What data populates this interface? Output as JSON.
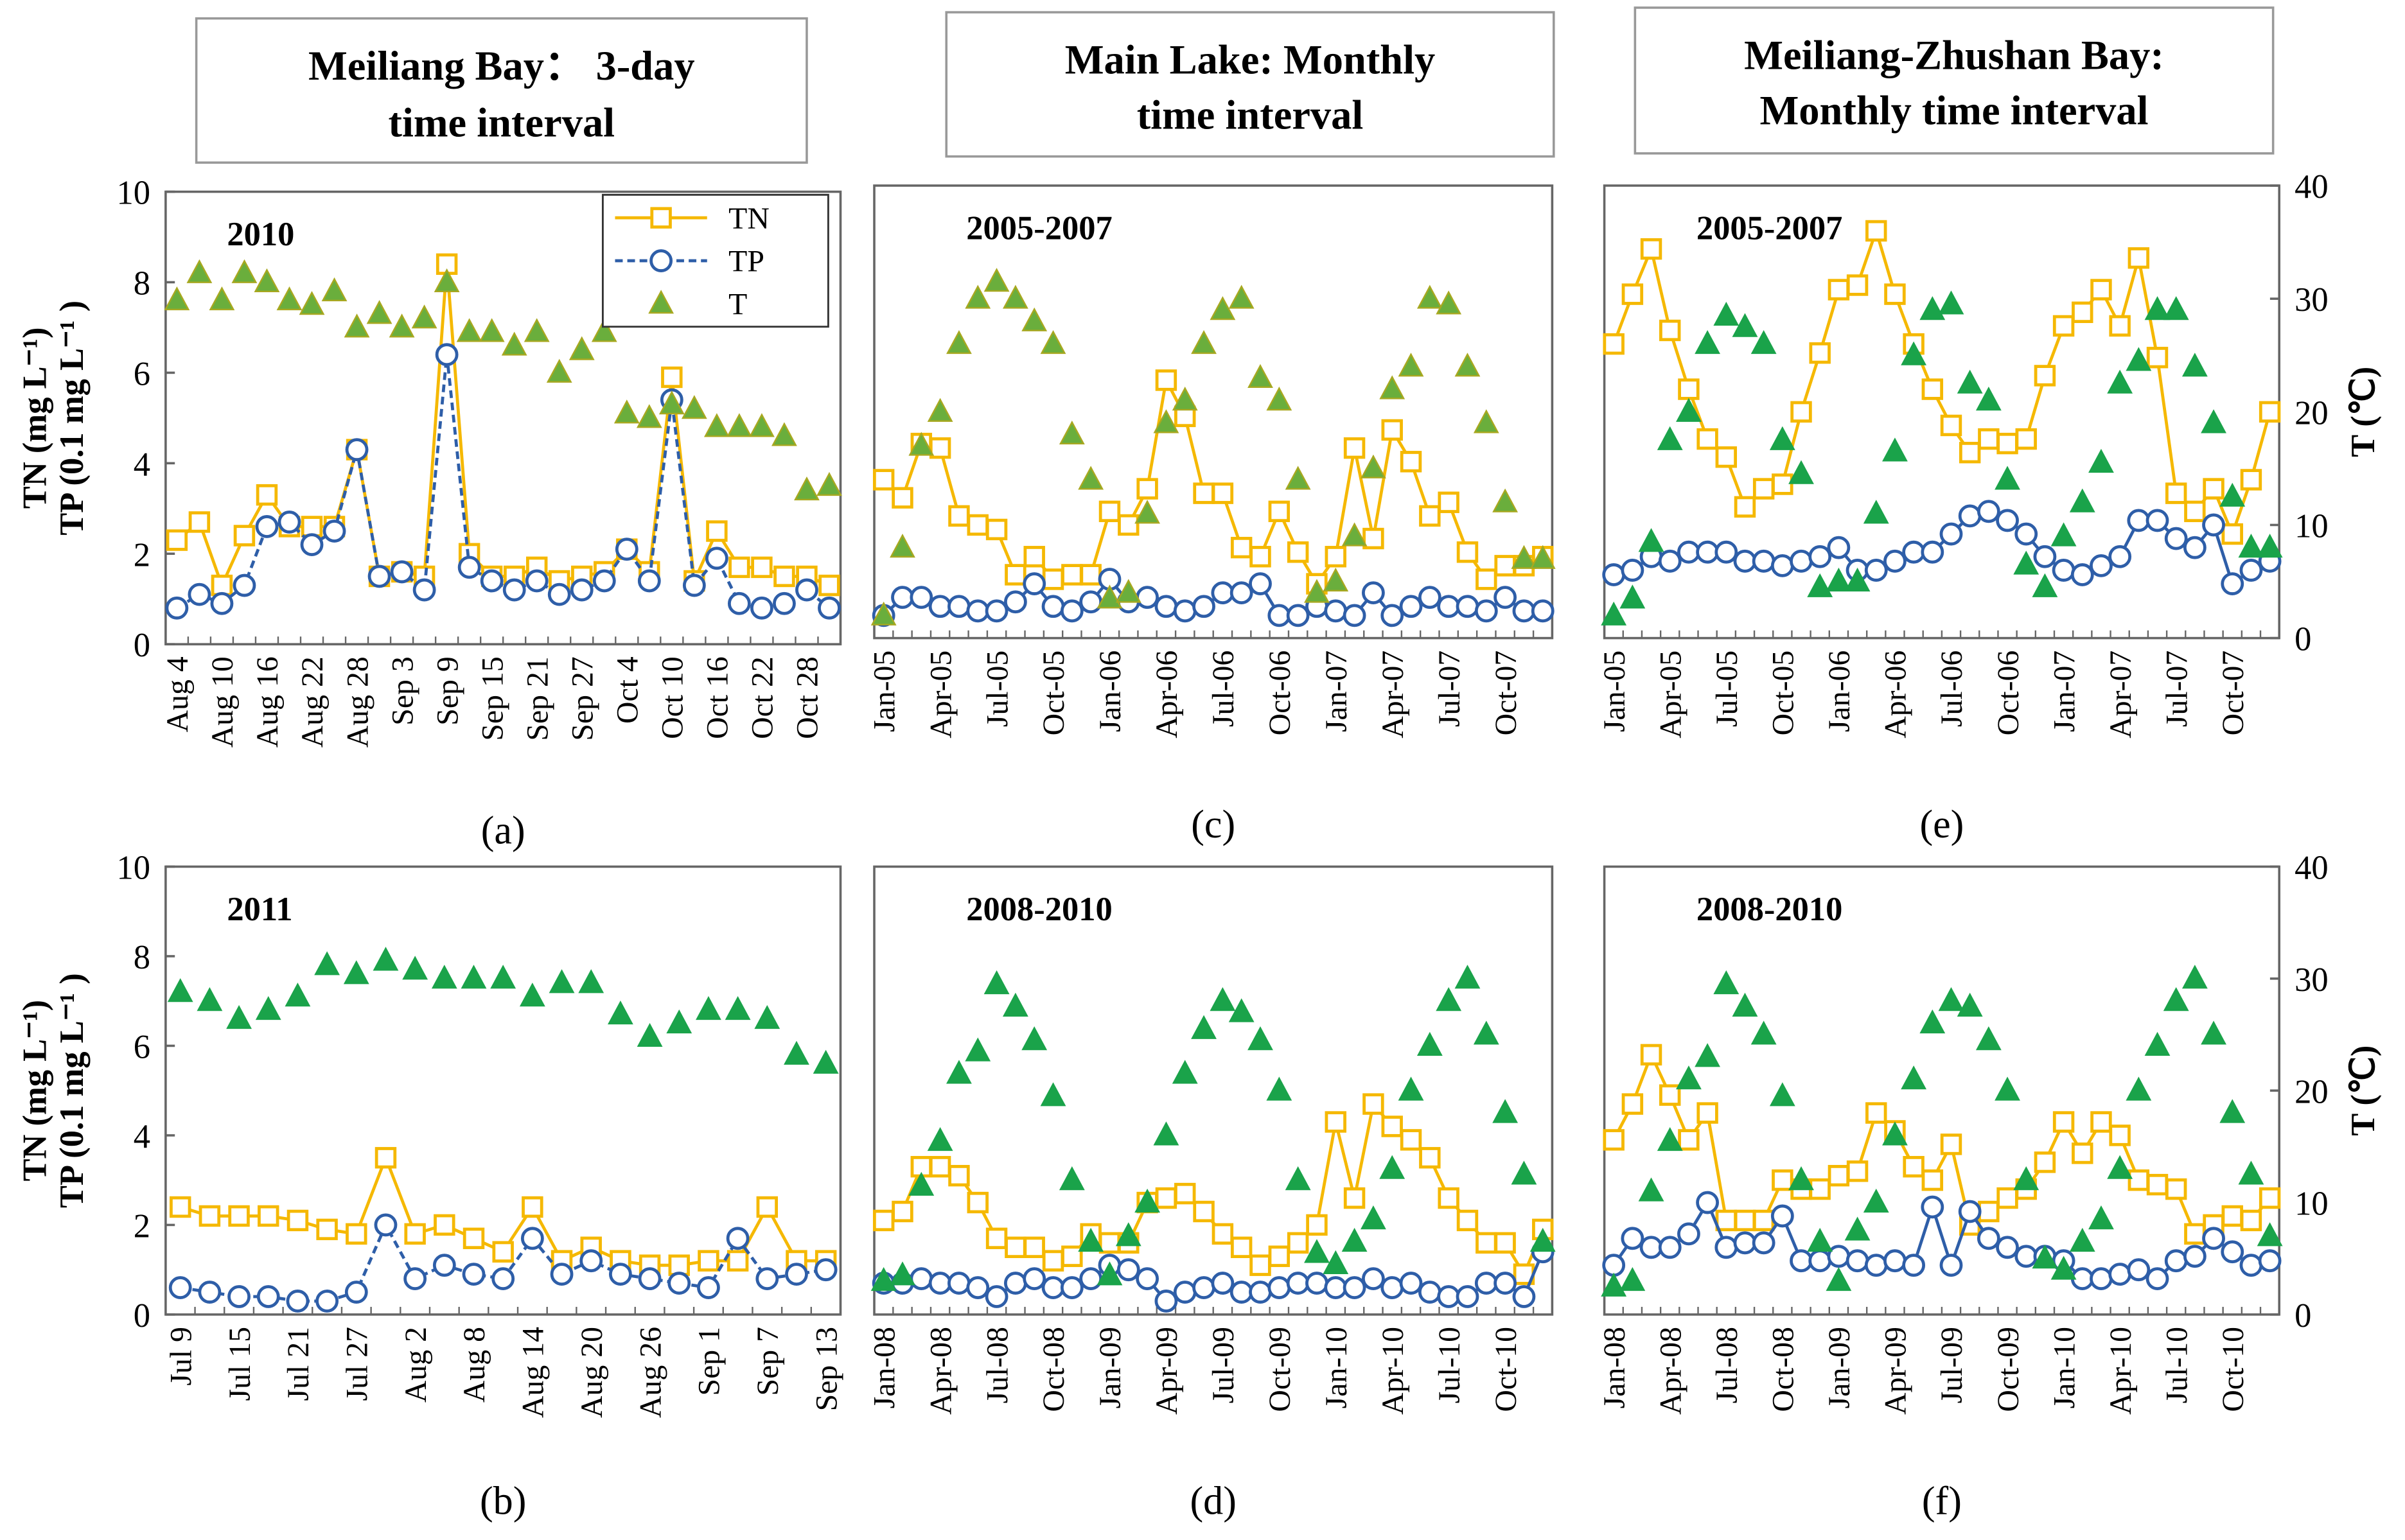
{
  "column_titles": [
    [
      "Meiliang Bay：  3-day",
      "time interval"
    ],
    [
      "Main Lake: Monthly",
      "time interval"
    ],
    [
      "Meiliang-Zhushan Bay:",
      "Monthly time interval"
    ]
  ],
  "chart_data": [
    {
      "type": "line",
      "annotation": "2010",
      "caption": "(a)",
      "ylabel": [
        "TN (mg L⁻¹)",
        "TP (0.1 mg L⁻¹ )"
      ],
      "legend": "top-right",
      "categories": [
        "Aug 4",
        null,
        "Aug 10",
        null,
        "Aug 16",
        null,
        "Aug 22",
        null,
        "Aug 28",
        null,
        "Sep 3",
        null,
        "Sep 9",
        null,
        "Sep 15",
        null,
        "Sep 21",
        null,
        "Sep 27",
        null,
        "Oct 4",
        null,
        "Oct 10",
        null,
        "Oct 16",
        null,
        "Oct 22",
        null,
        "Oct 28",
        null
      ],
      "ylim": [
        0,
        10
      ],
      "yticks": [
        0,
        2,
        4,
        6,
        8,
        10
      ],
      "y2lim": [
        0,
        40
      ],
      "series": [
        {
          "name": "TN",
          "color": "#f5b800",
          "marker": "square",
          "values": [
            2.3,
            2.7,
            1.3,
            2.4,
            3.3,
            2.6,
            2.6,
            2.6,
            4.3,
            1.5,
            1.6,
            1.5,
            8.4,
            2.0,
            1.5,
            1.5,
            1.7,
            1.4,
            1.5,
            1.6,
            2.1,
            1.6,
            5.9,
            1.4,
            2.5,
            1.7,
            1.7,
            1.5,
            1.5,
            1.3
          ]
        },
        {
          "name": "TP",
          "color": "#2e5ea8",
          "marker": "circle",
          "dash": true,
          "values": [
            0.8,
            1.1,
            0.9,
            1.3,
            2.6,
            2.7,
            2.2,
            2.5,
            4.3,
            1.5,
            1.6,
            1.2,
            6.4,
            1.7,
            1.4,
            1.2,
            1.4,
            1.1,
            1.2,
            1.4,
            2.1,
            1.4,
            5.4,
            1.3,
            1.9,
            0.9,
            0.8,
            0.9,
            1.2,
            0.8
          ]
        },
        {
          "name": "T",
          "color": "#6aae3c",
          "marker": "triangle",
          "line": false,
          "axis": "y2",
          "values": [
            30.4,
            32.8,
            30.4,
            32.8,
            32,
            30.4,
            30,
            31.2,
            28,
            29.2,
            28,
            28.8,
            32,
            27.6,
            27.6,
            26.4,
            27.6,
            24,
            26,
            27.6,
            20.4,
            20,
            21.2,
            20.8,
            19.2,
            19.2,
            19.2,
            18.4,
            13.6,
            14
          ]
        }
      ]
    },
    {
      "type": "line",
      "annotation": "2011",
      "caption": "(b)",
      "ylabel": [
        "TN (mg L⁻¹)",
        "TP (0.1 mg L⁻¹ )"
      ],
      "categories": [
        "Jul 9",
        null,
        "Jul 15",
        null,
        "Jul 21",
        null,
        "Jul 27",
        null,
        "Aug 2",
        null,
        "Aug 8",
        null,
        "Aug 14",
        null,
        "Aug 20",
        null,
        "Aug 26",
        null,
        "Sep 1",
        null,
        "Sep 7",
        null,
        "Sep 13"
      ],
      "ylim": [
        0,
        10
      ],
      "yticks": [
        0,
        2,
        4,
        6,
        8,
        10
      ],
      "y2lim": [
        0,
        40
      ],
      "series": [
        {
          "color": "#f5b800",
          "marker": "square",
          "values": [
            2.4,
            2.2,
            2.2,
            2.2,
            2.1,
            1.9,
            1.8,
            3.5,
            1.8,
            2.0,
            1.7,
            1.4,
            2.4,
            1.2,
            1.5,
            1.2,
            1.1,
            1.1,
            1.2,
            1.2,
            2.4,
            1.2,
            1.2
          ]
        },
        {
          "color": "#2e5ea8",
          "marker": "circle",
          "dash": true,
          "values": [
            0.6,
            0.5,
            0.4,
            0.4,
            0.3,
            0.3,
            0.5,
            2.0,
            0.8,
            1.1,
            0.9,
            0.8,
            1.7,
            0.9,
            1.2,
            0.9,
            0.8,
            0.7,
            0.6,
            1.7,
            0.8,
            0.9,
            1.0
          ]
        },
        {
          "color": "#1aa34a",
          "marker": "triangle",
          "line": false,
          "axis": "y2",
          "values": [
            28.8,
            28,
            26.4,
            27.2,
            28.4,
            31.2,
            30.4,
            31.6,
            30.8,
            30,
            30,
            30,
            28.4,
            29.6,
            29.6,
            26.8,
            24.8,
            26,
            27.2,
            27.2,
            26.4,
            23.2,
            22.4
          ]
        }
      ]
    },
    {
      "type": "line",
      "annotation": "2005-2007",
      "caption": "(c)",
      "categories": [
        "Jan-05",
        null,
        null,
        "Apr-05",
        null,
        null,
        "Jul-05",
        null,
        null,
        "Oct-05",
        null,
        null,
        "Jan-06",
        null,
        null,
        "Apr-06",
        null,
        null,
        "Jul-06",
        null,
        null,
        "Oct-06",
        null,
        null,
        "Jan-07",
        null,
        null,
        "Apr-07",
        null,
        null,
        "Jul-07",
        null,
        null,
        "Oct-07",
        null,
        null
      ],
      "ylim": [
        0,
        10
      ],
      "y2lim": [
        0,
        40
      ],
      "series": [
        {
          "color": "#f5b800",
          "marker": "square",
          "values": [
            3.5,
            3.1,
            4.3,
            4.2,
            2.7,
            2.5,
            2.4,
            1.4,
            1.8,
            1.3,
            1.4,
            1.4,
            2.8,
            2.5,
            3.3,
            5.7,
            4.9,
            3.2,
            3.2,
            2.0,
            1.8,
            2.8,
            1.9,
            1.2,
            1.8,
            4.2,
            2.2,
            4.6,
            3.9,
            2.7,
            3.0,
            1.9,
            1.3,
            1.6,
            1.6,
            1.8
          ]
        },
        {
          "color": "#2e5ea8",
          "marker": "circle",
          "values": [
            0.5,
            0.9,
            0.9,
            0.7,
            0.7,
            0.6,
            0.6,
            0.8,
            1.2,
            0.7,
            0.6,
            0.8,
            1.3,
            0.8,
            0.9,
            0.7,
            0.6,
            0.7,
            1.0,
            1.0,
            1.2,
            0.5,
            0.5,
            0.7,
            0.6,
            0.5,
            1.0,
            0.5,
            0.7,
            0.9,
            0.7,
            0.7,
            0.6,
            0.9,
            0.6,
            0.6
          ]
        },
        {
          "color": "#6aae3c",
          "marker": "triangle",
          "line": false,
          "axis": "y2",
          "values": [
            2,
            8,
            17,
            20,
            26,
            30,
            31.5,
            30,
            28,
            26,
            18,
            14,
            3.5,
            4,
            11,
            19,
            21,
            26,
            29,
            30,
            23,
            21,
            14,
            4,
            5,
            9,
            15,
            22,
            24,
            30,
            29.5,
            24,
            19,
            12,
            7,
            7
          ]
        }
      ]
    },
    {
      "type": "line",
      "annotation": "2008-2010",
      "caption": "(d)",
      "categories": [
        "Jan-08",
        null,
        null,
        "Apr-08",
        null,
        null,
        "Jul-08",
        null,
        null,
        "Oct-08",
        null,
        null,
        "Jan-09",
        null,
        null,
        "Apr-09",
        null,
        null,
        "Jul-09",
        null,
        null,
        "Oct-09",
        null,
        null,
        "Jan-10",
        null,
        null,
        "Apr-10",
        null,
        null,
        "Jul-10",
        null,
        null,
        "Oct-10",
        null,
        null
      ],
      "ylim": [
        0,
        10
      ],
      "y2lim": [
        0,
        40
      ],
      "series": [
        {
          "color": "#f5b800",
          "marker": "square",
          "values": [
            2.1,
            2.3,
            3.3,
            3.3,
            3.1,
            2.5,
            1.7,
            1.5,
            1.5,
            1.2,
            1.3,
            1.8,
            1.6,
            1.6,
            2.5,
            2.6,
            2.7,
            2.3,
            1.8,
            1.5,
            1.1,
            1.3,
            1.6,
            2.0,
            4.3,
            2.6,
            4.7,
            4.2,
            3.9,
            3.5,
            2.6,
            2.1,
            1.6,
            1.6,
            0.9,
            1.9
          ]
        },
        {
          "color": "#2e5ea8",
          "marker": "circle",
          "values": [
            0.7,
            0.7,
            0.8,
            0.7,
            0.7,
            0.6,
            0.4,
            0.7,
            0.8,
            0.6,
            0.6,
            0.8,
            1.1,
            1.0,
            0.8,
            0.3,
            0.5,
            0.6,
            0.7,
            0.5,
            0.5,
            0.6,
            0.7,
            0.7,
            0.6,
            0.6,
            0.8,
            0.6,
            0.7,
            0.5,
            0.4,
            0.4,
            0.7,
            0.7,
            0.4,
            1.4
          ]
        },
        {
          "color": "#1aa34a",
          "marker": "triangle",
          "line": false,
          "axis": "y2",
          "values": [
            3,
            3.5,
            11.5,
            15.5,
            21.5,
            23.5,
            29.5,
            27.5,
            24.5,
            19.5,
            12,
            6.5,
            3.5,
            7,
            10,
            16,
            21.5,
            25.5,
            28,
            27,
            24.5,
            20,
            12,
            5.5,
            4.5,
            6.5,
            8.5,
            13,
            20,
            24,
            28,
            30,
            25,
            18,
            12.5,
            6.5
          ]
        }
      ]
    },
    {
      "type": "line",
      "annotation": "2005-2007",
      "caption": "(e)",
      "y2label": "T (℃)",
      "categories": [
        "Jan-05",
        null,
        null,
        "Apr-05",
        null,
        null,
        "Jul-05",
        null,
        null,
        "Oct-05",
        null,
        null,
        "Jan-06",
        null,
        null,
        "Apr-06",
        null,
        null,
        "Jul-06",
        null,
        null,
        "Oct-06",
        null,
        null,
        "Jan-07",
        null,
        null,
        "Apr-07",
        null,
        null,
        "Jul-07",
        null,
        null,
        "Oct-07",
        null,
        null
      ],
      "ylim": [
        0,
        10
      ],
      "y2lim": [
        0,
        40
      ],
      "y2ticks": [
        0,
        10,
        20,
        30,
        40
      ],
      "series": [
        {
          "color": "#f5b800",
          "marker": "square",
          "values": [
            6.5,
            7.6,
            8.6,
            6.8,
            5.5,
            4.4,
            4.0,
            2.9,
            3.3,
            3.4,
            5.0,
            6.3,
            7.7,
            7.8,
            9.0,
            7.6,
            6.5,
            5.5,
            4.7,
            4.1,
            4.4,
            4.3,
            4.4,
            5.8,
            6.9,
            7.2,
            7.7,
            6.9,
            8.4,
            6.2,
            3.2,
            2.8,
            3.3,
            2.3,
            3.5,
            5.0
          ]
        },
        {
          "color": "#2e5ea8",
          "marker": "circle",
          "values": [
            1.4,
            1.5,
            1.8,
            1.7,
            1.9,
            1.9,
            1.9,
            1.7,
            1.7,
            1.6,
            1.7,
            1.8,
            2.0,
            1.5,
            1.5,
            1.7,
            1.9,
            1.9,
            2.3,
            2.7,
            2.8,
            2.6,
            2.3,
            1.8,
            1.5,
            1.4,
            1.6,
            1.8,
            2.6,
            2.6,
            2.2,
            2.0,
            2.5,
            1.2,
            1.5,
            1.7
          ]
        },
        {
          "color": "#1aa34a",
          "marker": "triangle",
          "line": false,
          "axis": "y2",
          "values": [
            2,
            3.5,
            8.5,
            17.5,
            20,
            26,
            28.5,
            27.5,
            26,
            17.5,
            14.5,
            4.5,
            5,
            5,
            11,
            16.5,
            25,
            29,
            29.5,
            22.5,
            21,
            14,
            6.5,
            4.5,
            9,
            12,
            15.5,
            22.5,
            24.5,
            29,
            29,
            24,
            19,
            12.5,
            8,
            8
          ]
        }
      ]
    },
    {
      "type": "line",
      "annotation": "2008-2010",
      "caption": "(f)",
      "y2label": "T (℃)",
      "categories": [
        "Jan-08",
        null,
        null,
        "Apr-08",
        null,
        null,
        "Jul-08",
        null,
        null,
        "Oct-08",
        null,
        null,
        "Jan-09",
        null,
        null,
        "Apr-09",
        null,
        null,
        "Jul-09",
        null,
        null,
        "Oct-09",
        null,
        null,
        "Jan-10",
        null,
        null,
        "Apr-10",
        null,
        null,
        "Jul-10",
        null,
        null,
        "Oct-10",
        null,
        null
      ],
      "ylim": [
        0,
        10
      ],
      "y2lim": [
        0,
        40
      ],
      "y2ticks": [
        0,
        10,
        20,
        30,
        40
      ],
      "series": [
        {
          "color": "#f5b800",
          "marker": "square",
          "values": [
            3.9,
            4.7,
            5.8,
            4.9,
            3.9,
            4.5,
            2.1,
            2.1,
            2.1,
            3.0,
            2.8,
            2.8,
            3.1,
            3.2,
            4.5,
            4.1,
            3.3,
            3.0,
            3.8,
            2.0,
            2.3,
            2.6,
            2.8,
            3.4,
            4.3,
            3.6,
            4.3,
            4.0,
            3.0,
            2.9,
            2.8,
            1.8,
            2.0,
            2.2,
            2.1,
            2.6
          ]
        },
        {
          "color": "#2e5ea8",
          "marker": "circle",
          "values": [
            1.1,
            1.7,
            1.5,
            1.5,
            1.8,
            2.5,
            1.5,
            1.6,
            1.6,
            2.2,
            1.2,
            1.2,
            1.3,
            1.2,
            1.1,
            1.2,
            1.1,
            2.4,
            1.1,
            2.3,
            1.7,
            1.5,
            1.3,
            1.3,
            1.2,
            0.8,
            0.8,
            0.9,
            1.0,
            0.8,
            1.2,
            1.3,
            1.7,
            1.4,
            1.1,
            1.2
          ]
        },
        {
          "color": "#1aa34a",
          "marker": "triangle",
          "line": false,
          "axis": "y2",
          "values": [
            2.5,
            3,
            11,
            15.5,
            21,
            23,
            29.5,
            27.5,
            25,
            19.5,
            12,
            6.5,
            3,
            7.5,
            10,
            16,
            21,
            26,
            28,
            27.5,
            24.5,
            20,
            12,
            5,
            4,
            6.5,
            8.5,
            13,
            20,
            24,
            28,
            30,
            25,
            18,
            12.5,
            7
          ]
        }
      ]
    }
  ]
}
